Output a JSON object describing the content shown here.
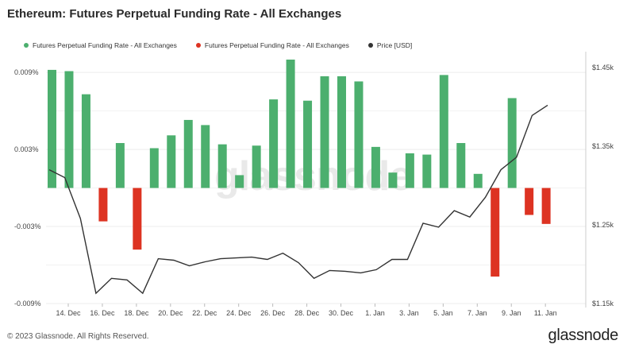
{
  "title": "Ethereum: Futures Perpetual Funding Rate - All Exchanges",
  "legend": [
    {
      "label": "Futures Perpetual Funding Rate - All Exchanges",
      "color": "#4caf6e"
    },
    {
      "label": "Futures Perpetual Funding Rate - All Exchanges",
      "color": "#dd3322"
    },
    {
      "label": "Price [USD]",
      "color": "#333333"
    }
  ],
  "watermark": "glassnode",
  "footer": {
    "copyright": "© 2023 Glassnode. All Rights Reserved.",
    "brand": "glassnode"
  },
  "chart_data": {
    "type": "bar",
    "title": "Ethereum: Futures Perpetual Funding Rate - All Exchanges",
    "x_tick_labels": [
      "14. Dec",
      "16. Dec",
      "18. Dec",
      "20. Dec",
      "22. Dec",
      "24. Dec",
      "26. Dec",
      "28. Dec",
      "30. Dec",
      "1. Jan",
      "3. Jan",
      "5. Jan",
      "7. Jan",
      "9. Jan",
      "11. Jan"
    ],
    "y_left_ticks": [
      "0.009%",
      "0.003%",
      "-0.003%",
      "-0.009%"
    ],
    "y_left_tick_values": [
      0.009,
      0.003,
      -0.003,
      -0.009
    ],
    "y_right_ticks": [
      "$1.45k",
      "$1.35k",
      "$1.25k",
      "$1.15k"
    ],
    "y_right_tick_values": [
      1450,
      1350,
      1250,
      1150
    ],
    "ylim_left": [
      -0.009,
      0.01
    ],
    "ylim_right": [
      1150,
      1460
    ],
    "series": [
      {
        "name": "Futures Perpetual Funding Rate - All Exchanges",
        "unit": "%",
        "color_positive": "#4caf6e",
        "color_negative": "#dd3322",
        "values": [
          0.0092,
          0.0091,
          0.0073,
          -0.0026,
          0.0035,
          -0.0048,
          0.0031,
          0.0041,
          0.0053,
          0.0049,
          0.0034,
          0.001,
          0.0033,
          0.0069,
          0.01,
          0.0068,
          0.0087,
          0.0087,
          0.0083,
          0.0032,
          0.0012,
          0.0027,
          0.0026,
          0.0088,
          0.0035,
          0.0011,
          -0.0069,
          0.007,
          -0.0021,
          -0.0028
        ]
      },
      {
        "name": "Price [USD]",
        "color": "#333333",
        "values": [
          1320,
          1310,
          1258,
          1163,
          1182,
          1180,
          1163,
          1207,
          1205,
          1198,
          1203,
          1207,
          1208,
          1209,
          1206,
          1214,
          1202,
          1182,
          1192,
          1191,
          1189,
          1193,
          1206,
          1206,
          1252,
          1247,
          1268,
          1260,
          1285,
          1320,
          1336,
          1389,
          1402
        ]
      }
    ]
  }
}
